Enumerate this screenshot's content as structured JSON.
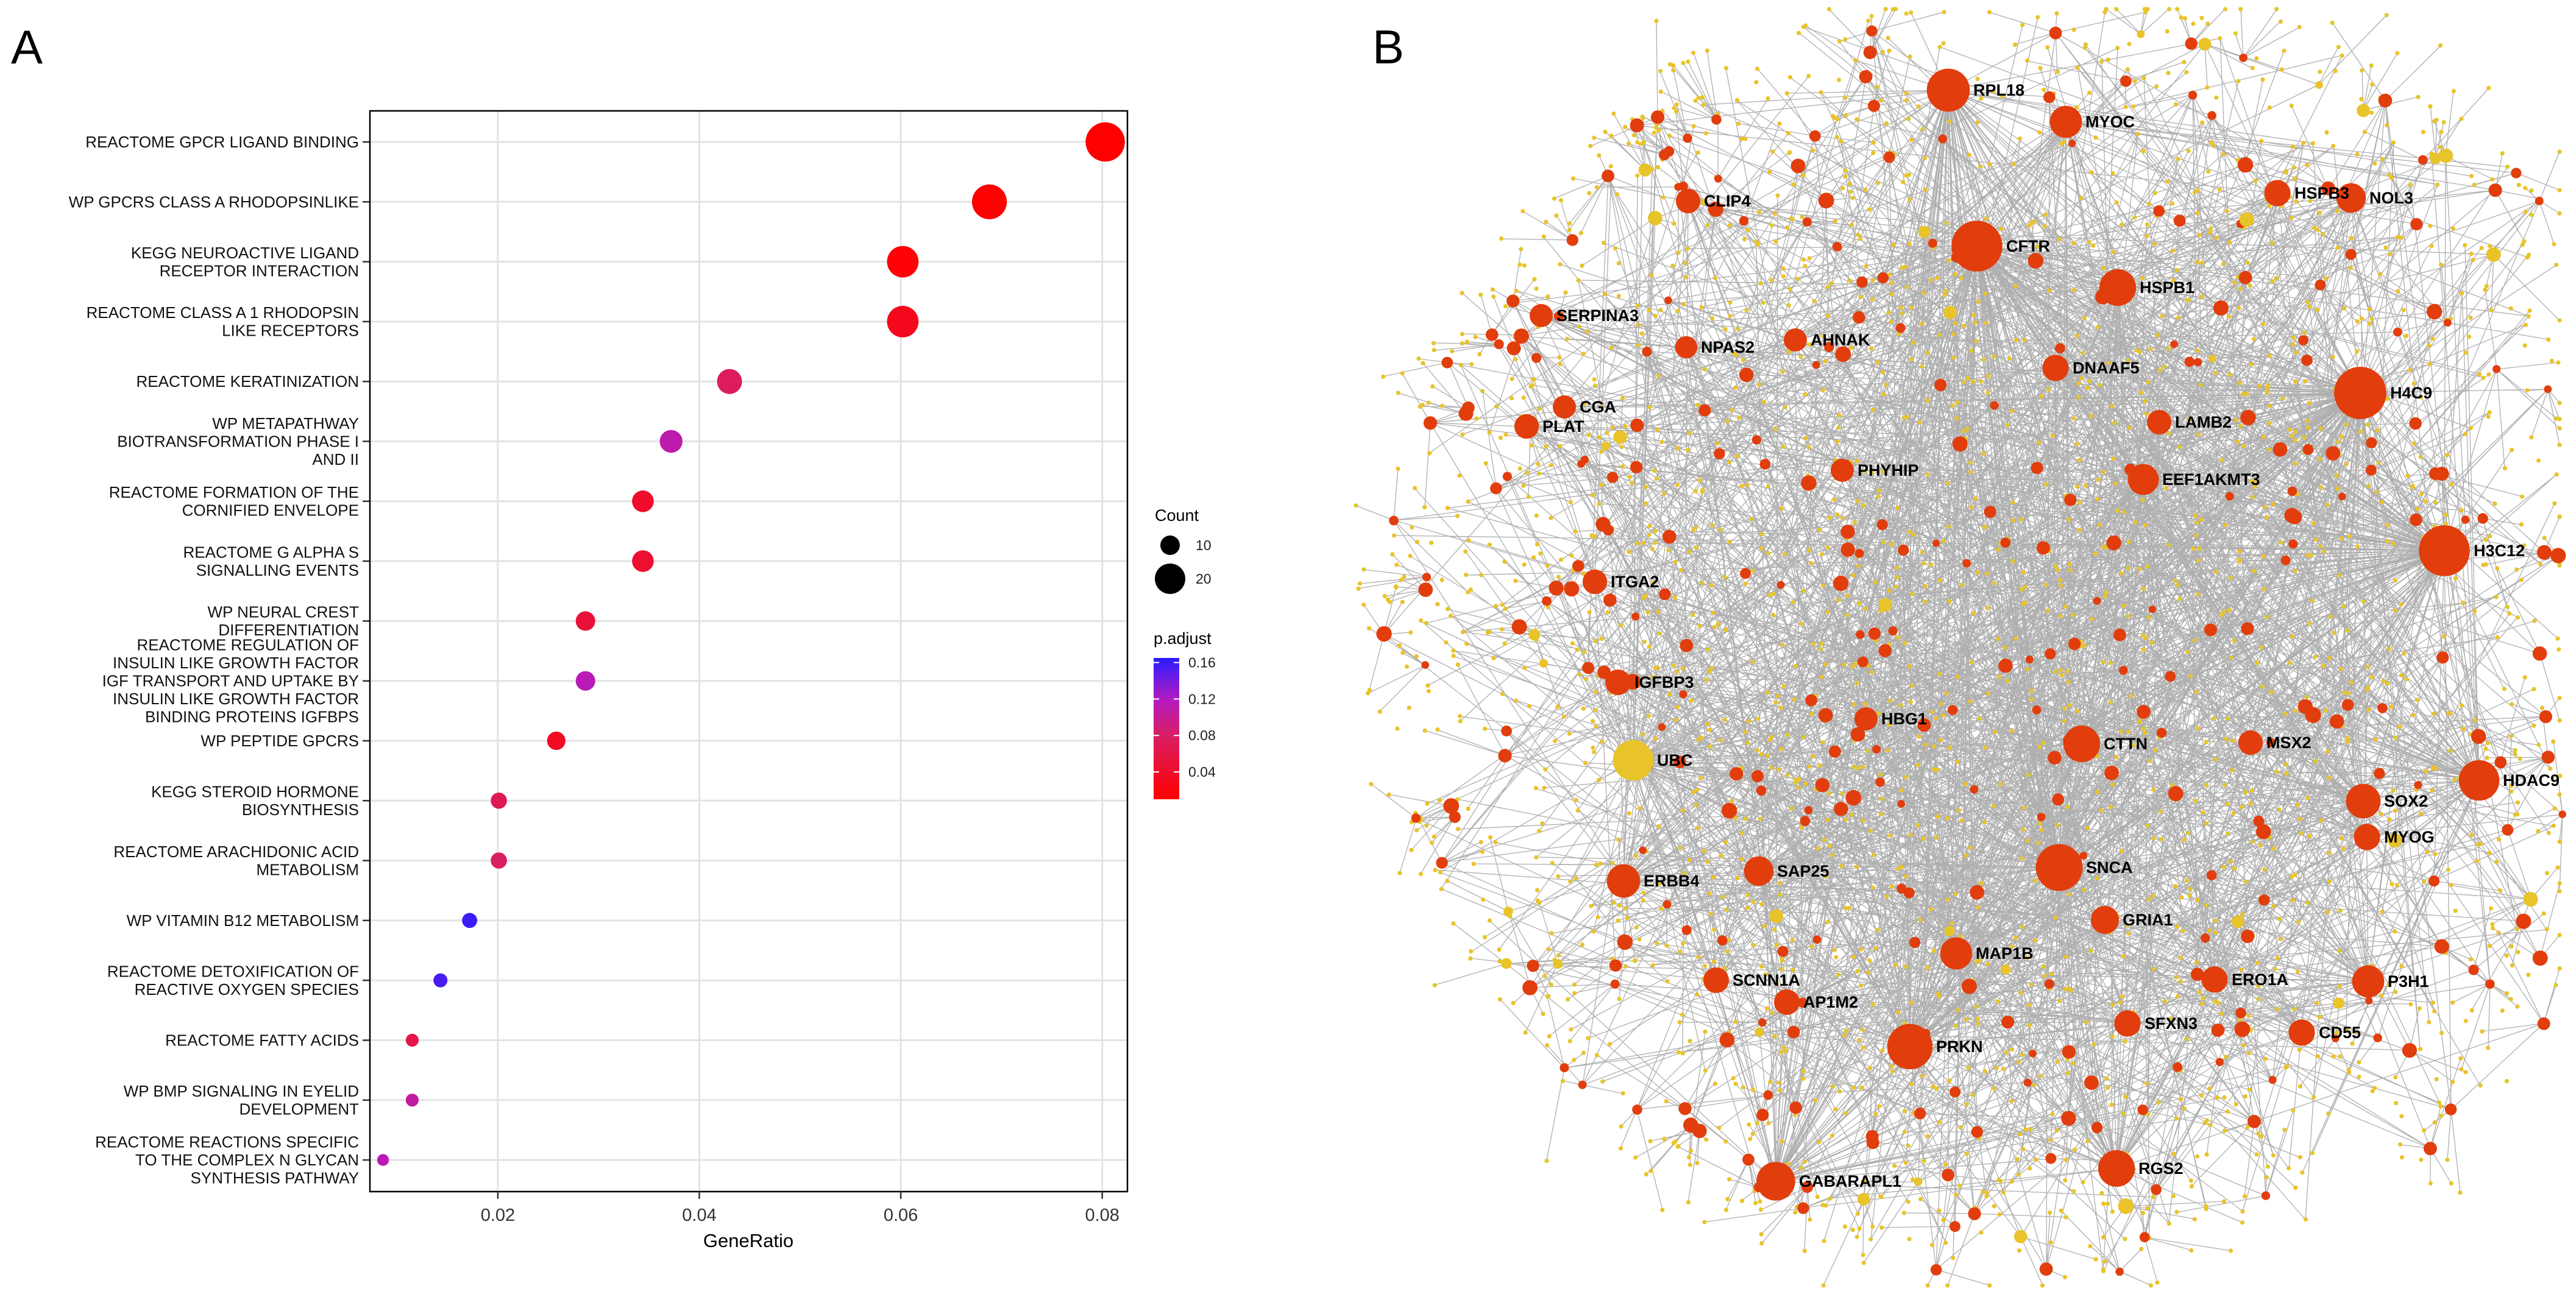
{
  "panels": {
    "a_letter": "A",
    "b_letter": "B"
  },
  "chart_data": [
    {
      "type": "scatter",
      "subtype": "dotplot",
      "xlabel": "GeneRatio",
      "ylabel": "",
      "xlim": [
        0.0073,
        0.0825
      ],
      "xticks": [
        0.02,
        0.04,
        0.06,
        0.08
      ],
      "xtick_labels": [
        "0.02",
        "0.04",
        "0.06",
        "0.08"
      ],
      "grid": true,
      "categories": [
        {
          "label": [
            "REACTOME GPCR LIGAND BINDING"
          ],
          "gene_ratio": 0.0803,
          "count": 28,
          "p_adjust": 0.01
        },
        {
          "label": [
            "WP GPCRS CLASS A RHODOPSINLIKE"
          ],
          "gene_ratio": 0.0688,
          "count": 24,
          "p_adjust": 0.012
        },
        {
          "label": [
            "KEGG NEUROACTIVE LIGAND",
            "RECEPTOR INTERACTION"
          ],
          "gene_ratio": 0.0602,
          "count": 21,
          "p_adjust": 0.014
        },
        {
          "label": [
            "REACTOME CLASS A 1 RHODOPSIN",
            "LIKE RECEPTORS"
          ],
          "gene_ratio": 0.0602,
          "count": 21,
          "p_adjust": 0.03
        },
        {
          "label": [
            "REACTOME KERATINIZATION"
          ],
          "gene_ratio": 0.043,
          "count": 15,
          "p_adjust": 0.075
        },
        {
          "label": [
            "WP METAPATHWAY",
            "BIOTRANSFORMATION PHASE I",
            "AND II"
          ],
          "gene_ratio": 0.0372,
          "count": 13,
          "p_adjust": 0.11
        },
        {
          "label": [
            "REACTOME FORMATION OF THE",
            "CORNIFIED ENVELOPE"
          ],
          "gene_ratio": 0.0344,
          "count": 12,
          "p_adjust": 0.04
        },
        {
          "label": [
            "REACTOME G ALPHA S",
            "SIGNALLING EVENTS"
          ],
          "gene_ratio": 0.0344,
          "count": 12,
          "p_adjust": 0.045
        },
        {
          "label": [
            "WP NEURAL CREST",
            "DIFFERENTIATION"
          ],
          "gene_ratio": 0.0287,
          "count": 10,
          "p_adjust": 0.05
        },
        {
          "label": [
            "REACTOME REGULATION OF",
            "INSULIN LIKE GROWTH FACTOR",
            "IGF TRANSPORT AND UPTAKE BY",
            "INSULIN LIKE GROWTH FACTOR",
            "BINDING PROTEINS IGFBPS"
          ],
          "gene_ratio": 0.0287,
          "count": 10,
          "p_adjust": 0.115
        },
        {
          "label": [
            "WP PEPTIDE GPCRS"
          ],
          "gene_ratio": 0.0258,
          "count": 9,
          "p_adjust": 0.035
        },
        {
          "label": [
            "KEGG STEROID HORMONE",
            "BIOSYNTHESIS"
          ],
          "gene_ratio": 0.0201,
          "count": 7,
          "p_adjust": 0.07
        },
        {
          "label": [
            "REACTOME ARACHIDONIC ACID",
            "METABOLISM"
          ],
          "gene_ratio": 0.0201,
          "count": 7,
          "p_adjust": 0.08
        },
        {
          "label": [
            "WP VITAMIN B12 METABOLISM"
          ],
          "gene_ratio": 0.0172,
          "count": 6,
          "p_adjust": 0.16
        },
        {
          "label": [
            "REACTOME DETOXIFICATION OF",
            "REACTIVE OXYGEN SPECIES"
          ],
          "gene_ratio": 0.0143,
          "count": 5,
          "p_adjust": 0.155
        },
        {
          "label": [
            "REACTOME FATTY ACIDS"
          ],
          "gene_ratio": 0.0115,
          "count": 4,
          "p_adjust": 0.06
        },
        {
          "label": [
            "WP BMP SIGNALING IN EYELID",
            "DEVELOPMENT"
          ],
          "gene_ratio": 0.0115,
          "count": 4,
          "p_adjust": 0.105
        },
        {
          "label": [
            "REACTOME REACTIONS SPECIFIC",
            "TO THE COMPLEX N GLYCAN",
            "SYNTHESIS PATHWAY"
          ],
          "gene_ratio": 0.0086,
          "count": 3,
          "p_adjust": 0.115
        }
      ],
      "legend": {
        "size_title": "Count",
        "size_values": [
          10,
          20
        ],
        "size_labels": [
          "10",
          "20"
        ],
        "color_title": "p.adjust",
        "color_range": [
          0.01,
          0.165
        ],
        "color_low": "#ff0000",
        "color_high": "#2a1cff",
        "color_ticks": [
          0.04,
          0.08,
          0.12,
          0.16
        ],
        "color_tick_labels": [
          "0.04",
          "0.08",
          "0.12",
          "0.16"
        ],
        "placement": "right"
      }
    },
    {
      "type": "network",
      "title": "",
      "hub_color": "#e23d0c",
      "ubc_color": "#e8c42a",
      "leaf_color": "#e8c42a",
      "edge_color": "#6e6e6e",
      "labeled_nodes": [
        {
          "name": "RPL18",
          "degree": 95
        },
        {
          "name": "MYOC",
          "degree": 40
        },
        {
          "name": "HSPB3",
          "degree": 20
        },
        {
          "name": "NOL3",
          "degree": 30
        },
        {
          "name": "CLIP4",
          "degree": 15
        },
        {
          "name": "CFTR",
          "degree": 150
        },
        {
          "name": "HSPB1",
          "degree": 60
        },
        {
          "name": "SERPINA3",
          "degree": 12
        },
        {
          "name": "NPAS2",
          "degree": 10
        },
        {
          "name": "AHNAK",
          "degree": 12
        },
        {
          "name": "DNAAF5",
          "degree": 20
        },
        {
          "name": "H4C9",
          "degree": 160
        },
        {
          "name": "CGA",
          "degree": 12
        },
        {
          "name": "PLAT",
          "degree": 15
        },
        {
          "name": "LAMB2",
          "degree": 15
        },
        {
          "name": "PHYHIP",
          "degree": 12
        },
        {
          "name": "EEF1AKMT3",
          "degree": 35
        },
        {
          "name": "H3C12",
          "degree": 150
        },
        {
          "name": "ITGA2",
          "degree": 15
        },
        {
          "name": "IGFBP3",
          "degree": 18
        },
        {
          "name": "HBG1",
          "degree": 12
        },
        {
          "name": "UBC",
          "degree": 80
        },
        {
          "name": "CTTN",
          "degree": 60
        },
        {
          "name": "MSX2",
          "degree": 15
        },
        {
          "name": "HDAC9",
          "degree": 80
        },
        {
          "name": "SOX2",
          "degree": 50
        },
        {
          "name": "MYOG",
          "degree": 20
        },
        {
          "name": "ERBB4",
          "degree": 45
        },
        {
          "name": "SAP25",
          "degree": 30
        },
        {
          "name": "SNCA",
          "degree": 120
        },
        {
          "name": "GRIA1",
          "degree": 25
        },
        {
          "name": "MAP1B",
          "degree": 40
        },
        {
          "name": "SCNN1A",
          "degree": 18
        },
        {
          "name": "AP1M2",
          "degree": 18
        },
        {
          "name": "ERO1A",
          "degree": 20
        },
        {
          "name": "P3H1",
          "degree": 40
        },
        {
          "name": "SFXN3",
          "degree": 20
        },
        {
          "name": "CD55",
          "degree": 20
        },
        {
          "name": "PRKN",
          "degree": 110
        },
        {
          "name": "GABARAPL1",
          "degree": 70
        },
        {
          "name": "RGS2",
          "degree": 60
        }
      ]
    }
  ]
}
